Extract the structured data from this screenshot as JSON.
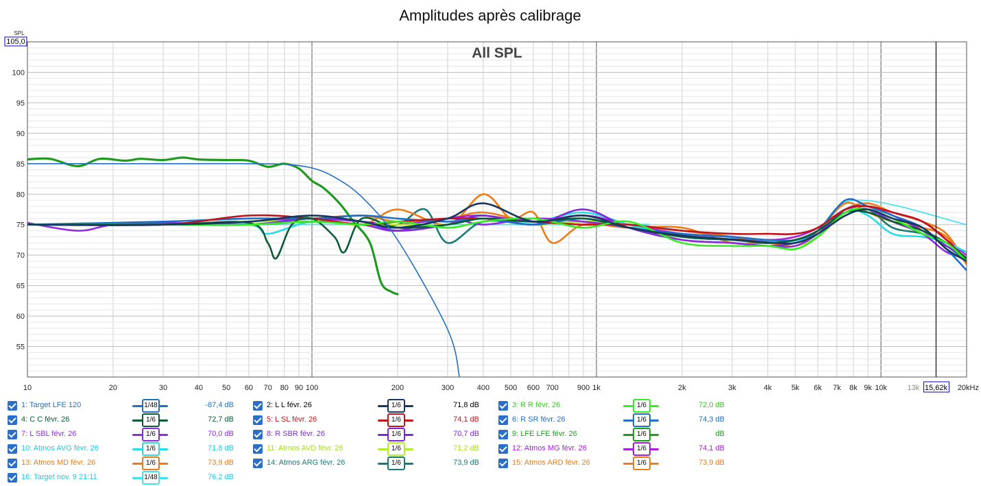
{
  "chart_data": {
    "type": "line",
    "title": "Amplitudes après calibrage",
    "subtitle": "All SPL",
    "ylabel": "SPL",
    "ylim": [
      50,
      105
    ],
    "ymax_label": "105,0",
    "yticks": [
      55,
      60,
      65,
      70,
      75,
      80,
      85,
      90,
      95,
      100
    ],
    "xscale": "log",
    "xlim": [
      10,
      20000
    ],
    "xticks": [
      {
        "v": 10,
        "label": "10"
      },
      {
        "v": 20,
        "label": "20"
      },
      {
        "v": 30,
        "label": "30"
      },
      {
        "v": 40,
        "label": "40"
      },
      {
        "v": 50,
        "label": "50"
      },
      {
        "v": 60,
        "label": "60"
      },
      {
        "v": 70,
        "label": "70"
      },
      {
        "v": 80,
        "label": "80"
      },
      {
        "v": 90,
        "label": "90"
      },
      {
        "v": 100,
        "label": "100"
      },
      {
        "v": 200,
        "label": "200"
      },
      {
        "v": 300,
        "label": "300"
      },
      {
        "v": 400,
        "label": "400"
      },
      {
        "v": 500,
        "label": "500"
      },
      {
        "v": 600,
        "label": "600"
      },
      {
        "v": 700,
        "label": "700"
      },
      {
        "v": 900,
        "label": "900"
      },
      {
        "v": 1000,
        "label": "1k"
      },
      {
        "v": 2000,
        "label": "2k"
      },
      {
        "v": 3000,
        "label": "3k"
      },
      {
        "v": 4000,
        "label": "4k"
      },
      {
        "v": 5000,
        "label": "5k"
      },
      {
        "v": 6000,
        "label": "6k"
      },
      {
        "v": 7000,
        "label": "7k"
      },
      {
        "v": 8000,
        "label": "8k"
      },
      {
        "v": 9000,
        "label": "9k"
      },
      {
        "v": 10000,
        "label": "10k"
      },
      {
        "v": 13000,
        "label": "13k"
      },
      {
        "v": 20000,
        "label": "20kHz"
      }
    ],
    "cursor": {
      "x": 15620,
      "label": "15,62k"
    },
    "series": [
      {
        "name": "1: Target LFE 120",
        "color": "#1f6fc5",
        "width": 1.6,
        "smoothing": "1/48",
        "value": "-87,4 dB",
        "x": [
          10,
          40,
          60,
          80,
          100,
          120,
          150,
          200,
          300,
          330
        ],
        "y": [
          85,
          85,
          85,
          84.9,
          84.3,
          82.8,
          79.5,
          72.5,
          57.8,
          50
        ]
      },
      {
        "name": "2: L L févr. 26",
        "color": "#17375e",
        "width": 2.6,
        "smoothing": "1/6",
        "value": "71,8 dB",
        "x": [
          10,
          30,
          60,
          100,
          150,
          200,
          300,
          400,
          600,
          900,
          1300,
          2000,
          3000,
          4000,
          5000,
          6000,
          7500,
          9000,
          11000,
          14000,
          17000,
          20000
        ],
        "y": [
          75,
          75,
          75.5,
          76.5,
          75.5,
          74.5,
          76,
          78.5,
          75.5,
          76.5,
          74.5,
          73.2,
          72.6,
          72.1,
          72,
          73.5,
          76.5,
          77.5,
          76,
          74.5,
          71,
          69
        ]
      },
      {
        "name": "3: R R févr. 26",
        "color": "#33ee22",
        "width": 2.6,
        "smoothing": "1/6",
        "value": "72,0 dB",
        "x": [
          10,
          30,
          60,
          100,
          150,
          200,
          300,
          400,
          600,
          900,
          1300,
          2000,
          3000,
          4000,
          5000,
          6000,
          7500,
          9000,
          11000,
          14000,
          17000,
          20000
        ],
        "y": [
          75,
          75,
          75,
          75.5,
          75,
          75.5,
          74.5,
          75.5,
          76,
          74.5,
          75.5,
          72,
          71.5,
          71.5,
          71,
          73,
          77,
          77.5,
          76,
          73.5,
          72,
          69
        ]
      },
      {
        "name": "4: C C févr. 26",
        "color": "#0a5a35",
        "width": 2.6,
        "smoothing": "1/6",
        "value": "72,7 dB",
        "x": [
          10,
          30,
          60,
          70,
          75,
          85,
          100,
          120,
          130,
          150,
          200,
          300,
          400,
          600,
          900,
          1300,
          2000,
          3000,
          4000,
          5000,
          6000,
          7500,
          9000,
          11000,
          14000,
          17000,
          20000
        ],
        "y": [
          75,
          75,
          75.3,
          72,
          69.5,
          75,
          76,
          73,
          70.5,
          76,
          74.5,
          75,
          76,
          75.5,
          76,
          74.5,
          73,
          72.5,
          72,
          72.5,
          74,
          77,
          77,
          75.5,
          74,
          72,
          69.5
        ]
      },
      {
        "name": "5: L SL févr. 26",
        "color": "#c0141a",
        "width": 2.6,
        "smoothing": "1/6",
        "value": "74,1 dB",
        "x": [
          10,
          30,
          60,
          100,
          150,
          200,
          300,
          400,
          600,
          900,
          1300,
          2000,
          3000,
          4000,
          5000,
          6000,
          7500,
          9000,
          11000,
          14000,
          17000,
          20000
        ],
        "y": [
          75,
          75,
          76.5,
          76,
          75,
          75.5,
          76,
          76,
          75.5,
          75,
          75,
          74,
          73.5,
          73.5,
          73.5,
          74.5,
          77.5,
          78,
          77,
          75.5,
          72.5,
          69
        ]
      },
      {
        "name": "6: R SR févr. 26",
        "color": "#1f6fc5",
        "width": 2.6,
        "smoothing": "1/6",
        "value": "74,3 dB",
        "x": [
          10,
          30,
          60,
          100,
          150,
          200,
          300,
          400,
          600,
          900,
          1300,
          2000,
          3000,
          4000,
          5000,
          6000,
          7500,
          9000,
          11000,
          14000,
          17000,
          20000
        ],
        "y": [
          75,
          75.5,
          76,
          76,
          76.5,
          76,
          75.5,
          76,
          75,
          76,
          74.5,
          73.5,
          73,
          72.5,
          72.5,
          74,
          79,
          78,
          76.5,
          74.5,
          71,
          67.5
        ]
      },
      {
        "name": "7: L SBL févr. 26",
        "color": "#8b2be2",
        "width": 2.6,
        "smoothing": "1/6",
        "value": "70,0 dB",
        "x": [
          10,
          15,
          20,
          30,
          60,
          100,
          150,
          200,
          300,
          400,
          600,
          900,
          1300,
          2000,
          3000,
          4000,
          5000,
          6000,
          7500,
          9000,
          11000,
          14000,
          17000,
          20000
        ],
        "y": [
          75.3,
          74,
          75,
          75.3,
          75,
          75.5,
          75,
          74,
          76,
          75,
          76,
          75.5,
          74.5,
          72.5,
          72,
          71.5,
          71.5,
          73.5,
          77,
          77.5,
          75.5,
          73.5,
          70.5,
          69.5
        ]
      },
      {
        "name": "8: R SBR févr. 26",
        "color": "#7a2ad8",
        "width": 2.6,
        "smoothing": "1/6",
        "value": "70,7 dB",
        "x": [
          10,
          30,
          60,
          100,
          150,
          200,
          300,
          400,
          600,
          900,
          1300,
          2000,
          3000,
          4000,
          5000,
          6000,
          7500,
          9000,
          11000,
          14000,
          17000,
          20000
        ],
        "y": [
          75,
          75,
          75,
          76,
          75.5,
          74,
          75,
          76.5,
          75,
          77.5,
          74.5,
          72.5,
          72,
          71.5,
          72,
          73.5,
          77.5,
          78,
          76.5,
          74,
          71.5,
          69.5
        ]
      },
      {
        "name": "9: LFE LFE févr. 26",
        "color": "#1e9b1e",
        "width": 3.2,
        "smoothing": "1/6",
        "value": "dB",
        "x": [
          10,
          12,
          15,
          18,
          22,
          25,
          30,
          35,
          40,
          50,
          60,
          70,
          80,
          90,
          100,
          110,
          125,
          140,
          160,
          175,
          190,
          200
        ],
        "y": [
          85.7,
          85.8,
          84.6,
          85.8,
          85.5,
          85.8,
          85.6,
          86,
          85.7,
          85.6,
          85.5,
          84.5,
          85,
          84.2,
          82.2,
          81,
          78.5,
          75.5,
          72,
          65.5,
          64,
          63.6
        ]
      },
      {
        "name": "10: Atmos AVG févr. 26",
        "color": "#22dde8",
        "width": 2.6,
        "smoothing": "1/6",
        "value": "71,8 dB",
        "x": [
          10,
          30,
          60,
          70,
          100,
          150,
          200,
          300,
          400,
          600,
          900,
          1300,
          2000,
          3000,
          4000,
          5000,
          6000,
          7500,
          9000,
          11000,
          14000,
          17000,
          20000
        ],
        "y": [
          75,
          75,
          75,
          73.5,
          75.5,
          75,
          74.5,
          75,
          76,
          75.5,
          77,
          75,
          73,
          72.5,
          72,
          72.5,
          74,
          77.5,
          76.5,
          73.5,
          73,
          72,
          70.5
        ]
      },
      {
        "name": "11: Atmos AVD févr. 26",
        "color": "#b4ee2a",
        "width": 2.6,
        "smoothing": "1/6",
        "value": "71,2 dB",
        "x": [
          10,
          30,
          60,
          100,
          150,
          200,
          300,
          400,
          600,
          900,
          1300,
          2000,
          3000,
          4000,
          5000,
          6000,
          7500,
          9000,
          11000,
          14000,
          17000,
          20000
        ],
        "y": [
          75,
          75,
          75.5,
          75.5,
          75,
          75,
          75,
          76,
          75,
          75.5,
          75,
          72.5,
          72,
          71.5,
          71.5,
          73,
          77,
          77.5,
          76,
          74,
          72,
          69.5
        ]
      },
      {
        "name": "12: Atmos MG févr. 26",
        "color": "#a51fd8",
        "width": 2.6,
        "smoothing": "1/6",
        "value": "74,1 dB",
        "x": [
          10,
          30,
          60,
          100,
          150,
          200,
          300,
          400,
          600,
          900,
          1300,
          2000,
          3000,
          4000,
          5000,
          6000,
          7500,
          9000,
          11000,
          14000,
          17000,
          20000
        ],
        "y": [
          75,
          75,
          75.5,
          76,
          75.5,
          75,
          76,
          76.5,
          75.5,
          76.5,
          75,
          73.5,
          73,
          72.5,
          73,
          74.5,
          77.5,
          78,
          77,
          75.5,
          72.5,
          70
        ]
      },
      {
        "name": "13: Atmos MD févr. 26",
        "color": "#ee7a12",
        "width": 2.6,
        "smoothing": "1/6",
        "value": "73,9 dB",
        "x": [
          10,
          30,
          60,
          100,
          150,
          200,
          300,
          400,
          500,
          600,
          700,
          900,
          1300,
          2000,
          3000,
          4000,
          5000,
          6000,
          7500,
          9000,
          11000,
          14000,
          17000,
          20000
        ],
        "y": [
          75,
          75,
          75.5,
          76,
          75,
          77.5,
          75,
          80,
          76,
          77,
          72,
          75,
          74.5,
          74.5,
          72,
          72,
          71.5,
          74,
          78.5,
          77,
          75.5,
          74.5,
          73,
          68.5
        ]
      },
      {
        "name": "14: Atmos ARG févr. 26",
        "color": "#167a78",
        "width": 2.6,
        "smoothing": "1/6",
        "value": "73,9 dB",
        "x": [
          10,
          30,
          60,
          100,
          150,
          200,
          250,
          300,
          400,
          600,
          900,
          1300,
          2000,
          3000,
          4000,
          5000,
          6000,
          7500,
          9000,
          11000,
          14000,
          17000,
          20000
        ],
        "y": [
          75,
          75,
          75,
          75.5,
          75,
          75,
          77.5,
          72,
          75.5,
          75,
          75.5,
          75,
          73,
          72.5,
          72,
          72.5,
          74,
          77,
          77.5,
          74.5,
          73.5,
          71.5,
          69
        ]
      },
      {
        "name": "15: Atmos ARD févr. 26",
        "color": "#ec7c18",
        "width": 2.6,
        "smoothing": "1/6",
        "value": "73,9 dB",
        "x": [
          10,
          30,
          60,
          100,
          150,
          200,
          300,
          400,
          600,
          900,
          1300,
          2000,
          3000,
          4000,
          5000,
          6000,
          7500,
          9000,
          11000,
          14000,
          17000,
          20000
        ],
        "y": [
          75,
          75,
          75.5,
          76,
          76.5,
          75.5,
          76,
          77,
          75.5,
          76.5,
          75,
          74,
          73,
          72,
          72.5,
          74,
          77.5,
          78.5,
          77,
          75.5,
          73.5,
          68.5
        ]
      },
      {
        "name": "16: Target nov. 9 21:11",
        "color": "#3ee3ef",
        "width": 1.6,
        "smoothing": "1/48",
        "value": "76,2 dB",
        "x": [
          10,
          1000,
          1500,
          5000,
          8000,
          20000
        ],
        "y": [
          75,
          75,
          74.8,
          72.3,
          79,
          75
        ]
      }
    ]
  },
  "legend_name_colors": {
    "1": "#1f6fc5",
    "2": "#000000",
    "3": "#33cc22",
    "4": "#0a5a35",
    "5": "#c0141a",
    "6": "#1f6fc5",
    "7": "#8b2be2",
    "8": "#7a2ad8",
    "9": "#1e9b1e",
    "10": "#22c8e0",
    "11": "#a8dd22",
    "12": "#a51fd8",
    "13": "#ec7c18",
    "14": "#167a78",
    "15": "#ec7c18",
    "16": "#22c8e0"
  }
}
